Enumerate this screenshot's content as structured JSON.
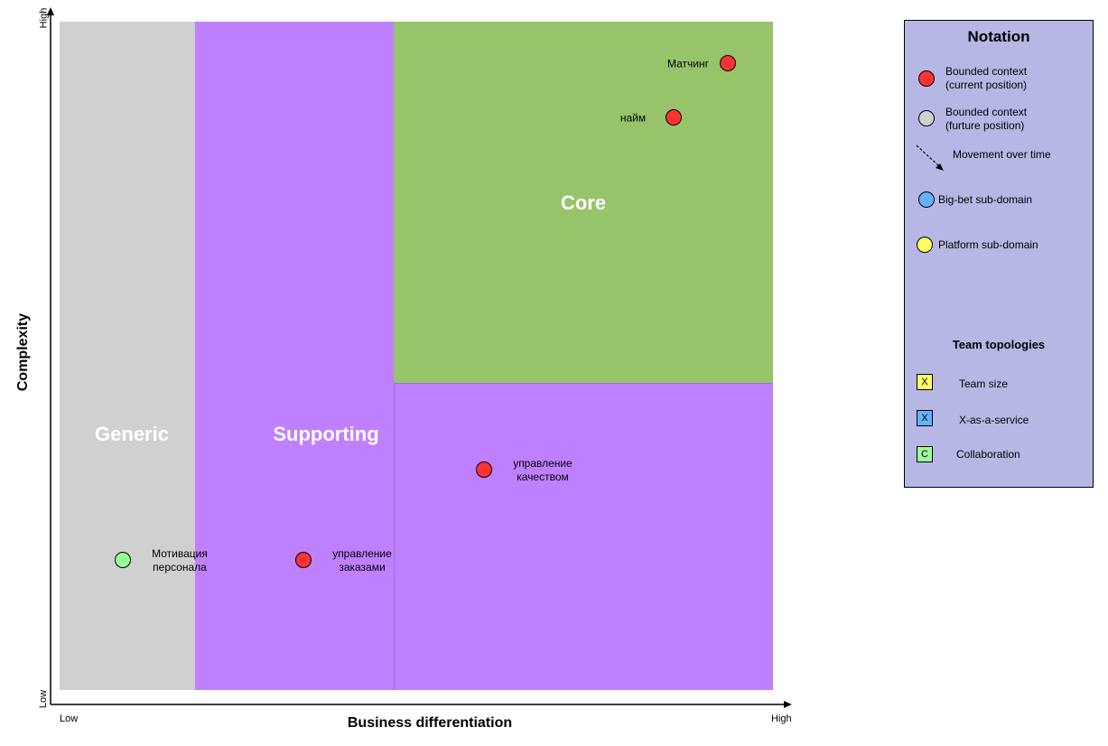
{
  "axes": {
    "y_label": "Complexity",
    "x_label": "Business differentiation",
    "y_high": "High",
    "y_low": "Low",
    "x_low": "Low",
    "x_high": "High"
  },
  "regions": {
    "generic": {
      "label": "Generic",
      "color": "#d0d0d0"
    },
    "supporting": {
      "label": "Supporting",
      "color": "#bf80ff"
    },
    "core": {
      "label": "Core",
      "color": "#97c36a"
    }
  },
  "contexts": [
    {
      "label": "Матчинг",
      "color": "#ff3333"
    },
    {
      "label": "найм",
      "color": "#ff3333"
    },
    {
      "label": "управление\nкачеством",
      "color": "#ff3333"
    },
    {
      "label": "управление\nзаказами",
      "color": "#ff3333"
    },
    {
      "label": "Мотивация\nперсонала",
      "color": "#99ff99"
    }
  ],
  "legend": {
    "title": "Notation",
    "current": {
      "label": "Bounded context\n(current position)",
      "color": "#ff3333"
    },
    "future": {
      "label": "Bounded context\n(furture position)",
      "color": "#d0d0d0"
    },
    "movement": {
      "label": "Movement over time"
    },
    "big_bet": {
      "label": "Big-bet sub-domain",
      "color": "#66b2ff"
    },
    "platform": {
      "label": "Platform sub-domain",
      "color": "#ffff66"
    },
    "team_title": "Team topologies",
    "team_size": {
      "glyph": "X",
      "label": "Team size",
      "color": "#ffff66"
    },
    "xaas": {
      "glyph": "X",
      "label": "X-as-a-service",
      "color": "#66b2ff"
    },
    "collab": {
      "glyph": "C",
      "label": "Collaboration",
      "color": "#99ff99"
    }
  }
}
